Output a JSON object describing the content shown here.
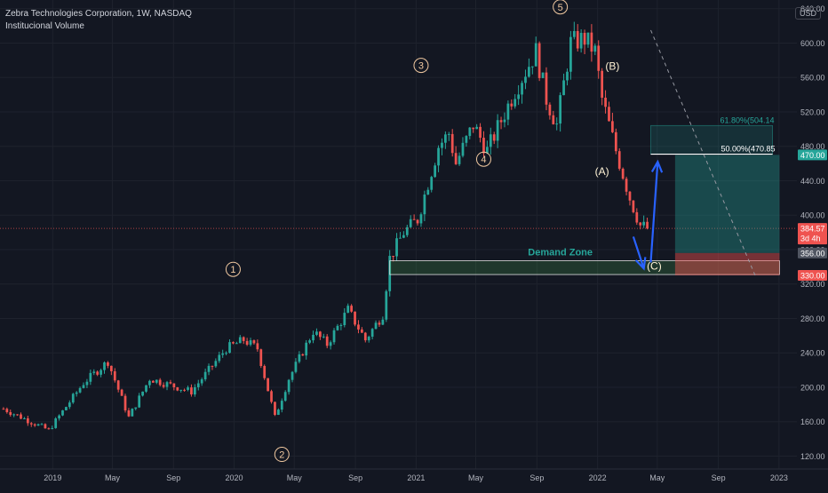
{
  "header": {
    "title": "Zebra Technologies Corporation, 1W, NASDAQ",
    "indicator": "Institucional Volume",
    "currency": "USD"
  },
  "colors": {
    "background": "#131722",
    "grid": "#1e222d",
    "up": "#26a69a",
    "down": "#ef5350",
    "axis_text": "#b2b5be",
    "wave_label": "#f0c8a0",
    "arrow": "#2962ff",
    "fib_line": "#ffffff",
    "fib_label": "#26a69a"
  },
  "chart_data": {
    "type": "candlestick",
    "y_axis": {
      "scale": "linear",
      "range": [
        105,
        650
      ],
      "ticks": [
        120,
        160,
        200,
        240,
        280,
        320,
        360,
        400,
        440,
        480,
        520,
        560,
        600,
        640
      ],
      "tick_labels": [
        "120.00",
        "160.00",
        "200.00",
        "240.00",
        "280.00",
        "320.00",
        "360.00",
        "400.00",
        "440.00",
        "480.00",
        "520.00",
        "560.00",
        "600.00",
        "640.00"
      ]
    },
    "x_axis": {
      "range": [
        "2018-09-17",
        "2023-02-06"
      ],
      "ticks": [
        "2019-01-01",
        "2019-05-01",
        "2019-09-01",
        "2020-01-01",
        "2020-05-01",
        "2020-09-01",
        "2021-01-01",
        "2021-05-01",
        "2021-09-01",
        "2022-01-01",
        "2022-05-01",
        "2022-09-01",
        "2023-01-01"
      ],
      "tick_labels": [
        "2019",
        "May",
        "Sep",
        "2020",
        "May",
        "Sep",
        "2021",
        "May",
        "Sep",
        "2022",
        "May",
        "Sep",
        "2023"
      ]
    },
    "grid": true,
    "path_anchors": [
      [
        "2018-09-24",
        175
      ],
      [
        "2018-12-24",
        150
      ],
      [
        "2019-03-04",
        205
      ],
      [
        "2019-04-22",
        230
      ],
      [
        "2019-06-03",
        165
      ],
      [
        "2019-07-15",
        210
      ],
      [
        "2019-10-07",
        195
      ],
      [
        "2019-12-16",
        245
      ],
      [
        "2020-01-20",
        255
      ],
      [
        "2020-02-17",
        245
      ],
      [
        "2020-03-23",
        165
      ],
      [
        "2020-04-20",
        210
      ],
      [
        "2020-06-08",
        265
      ],
      [
        "2020-07-06",
        250
      ],
      [
        "2020-08-17",
        290
      ],
      [
        "2020-09-21",
        255
      ],
      [
        "2020-10-26",
        285
      ],
      [
        "2020-11-09",
        350
      ],
      [
        "2020-12-07",
        380
      ],
      [
        "2021-01-04",
        395
      ],
      [
        "2021-02-15",
        480
      ],
      [
        "2021-03-08",
        495
      ],
      [
        "2021-03-22",
        460
      ],
      [
        "2021-04-26",
        505
      ],
      [
        "2021-05-24",
        475
      ],
      [
        "2021-06-21",
        510
      ],
      [
        "2021-07-19",
        545
      ],
      [
        "2021-08-30",
        590
      ],
      [
        "2021-09-20",
        535
      ],
      [
        "2021-10-11",
        505
      ],
      [
        "2021-11-08",
        600
      ],
      [
        "2021-12-06",
        605
      ],
      [
        "2021-12-27",
        590
      ],
      [
        "2022-01-10",
        535
      ],
      [
        "2022-02-07",
        475
      ],
      [
        "2022-03-07",
        420
      ],
      [
        "2022-03-28",
        388
      ],
      [
        "2022-04-11",
        384.57
      ]
    ],
    "last_price": {
      "value": 384.57,
      "label": "384.57",
      "countdown": "3d 4h",
      "color": "#ef5350"
    },
    "wave_labels": [
      {
        "text": "1",
        "date": "2019-12-30",
        "price": 337,
        "style": "circle"
      },
      {
        "text": "2",
        "date": "2020-04-06",
        "price": 122,
        "style": "circle"
      },
      {
        "text": "3",
        "date": "2021-01-11",
        "price": 574,
        "style": "circle"
      },
      {
        "text": "4",
        "date": "2021-05-17",
        "price": 465,
        "style": "circle"
      },
      {
        "text": "5",
        "date": "2021-10-18",
        "price": 642,
        "style": "circle"
      },
      {
        "text": "(B)",
        "date": "2022-01-31",
        "price": 573,
        "style": "plain"
      },
      {
        "text": "(A)",
        "date": "2022-01-10",
        "price": 451,
        "style": "plain"
      },
      {
        "text": "(C)",
        "date": "2022-04-25",
        "price": 341,
        "style": "plain"
      }
    ],
    "demand_zone": {
      "label": "Demand Zone",
      "date_start": "2020-11-09",
      "date_end": "2023-01-02",
      "price_low": 331,
      "price_high": 347,
      "label_date": "2021-10-18",
      "label_price": 353
    },
    "fib_levels": [
      {
        "label": "61.80%(504.14",
        "price": 504.14,
        "style": "box-top"
      },
      {
        "label": "50.00%(470.85",
        "price": 470.85,
        "style": "line"
      }
    ],
    "fib_box": {
      "date_start": "2022-04-18",
      "date_end": "2022-12-19"
    },
    "position": {
      "date_start": "2022-06-06",
      "date_end": "2023-01-02",
      "target": 470,
      "entry": 356,
      "stop": 330,
      "target_label": "470.00",
      "entry_label": "356.00",
      "stop_label": "330.00"
    },
    "dashed_trendline": {
      "start": [
        "2022-04-18",
        615
      ],
      "end": [
        "2022-11-14",
        330
      ]
    },
    "arrows": [
      {
        "from": [
          "2022-03-14",
          375
        ],
        "to": [
          "2022-04-04",
          338
        ]
      },
      {
        "from": [
          "2022-04-18",
          345
        ],
        "to": [
          "2022-05-02",
          462
        ]
      }
    ]
  }
}
